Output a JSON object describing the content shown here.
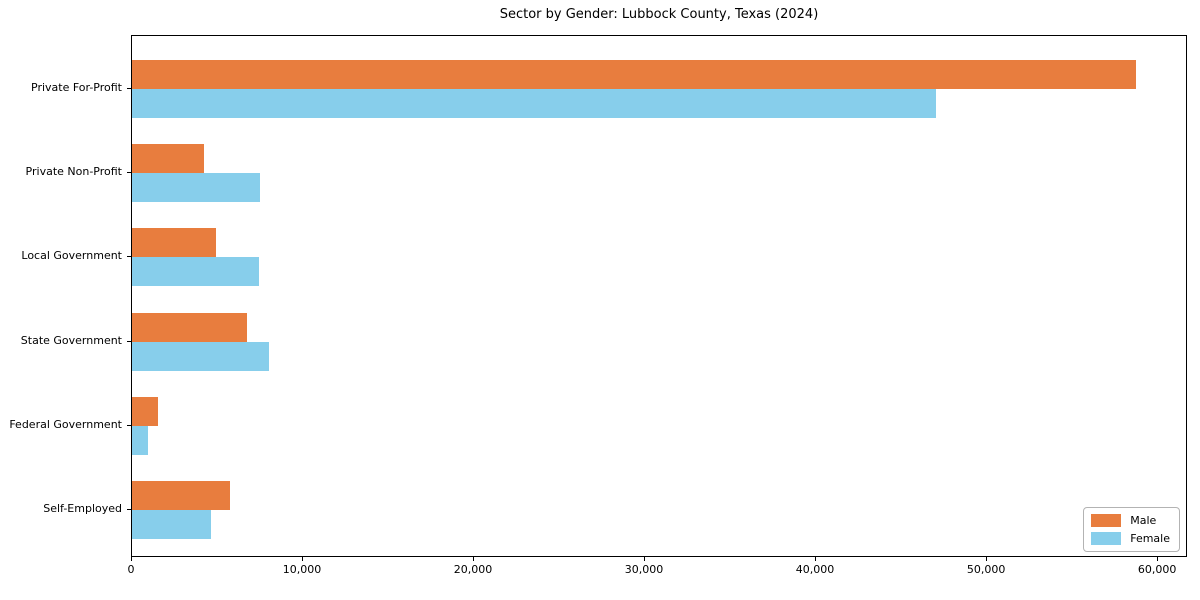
{
  "title": "Sector by Gender: Lubbock County, Texas (2024)",
  "chart_data": {
    "type": "bar",
    "orientation": "horizontal",
    "title": "Sector by Gender: Lubbock County, Texas (2024)",
    "categories": [
      "Private For-Profit",
      "Private Non-Profit",
      "Local Government",
      "State Government",
      "Federal Government",
      "Self-Employed"
    ],
    "series": [
      {
        "name": "Male",
        "color": "#e87d3e",
        "values": [
          58700,
          4200,
          4900,
          6700,
          1500,
          5700
        ]
      },
      {
        "name": "Female",
        "color": "#87ceeb",
        "values": [
          47000,
          7500,
          7400,
          8000,
          950,
          4600
        ]
      }
    ],
    "xlabel": "",
    "ylabel": "",
    "xlim": [
      0,
      61750
    ],
    "x_tick_values": [
      0,
      10000,
      20000,
      30000,
      40000,
      50000,
      60000
    ],
    "x_tick_labels": [
      "0",
      "10,000",
      "20,000",
      "30,000",
      "40,000",
      "50,000",
      "60,000"
    ],
    "legend_position": "lower right",
    "grid": false
  }
}
